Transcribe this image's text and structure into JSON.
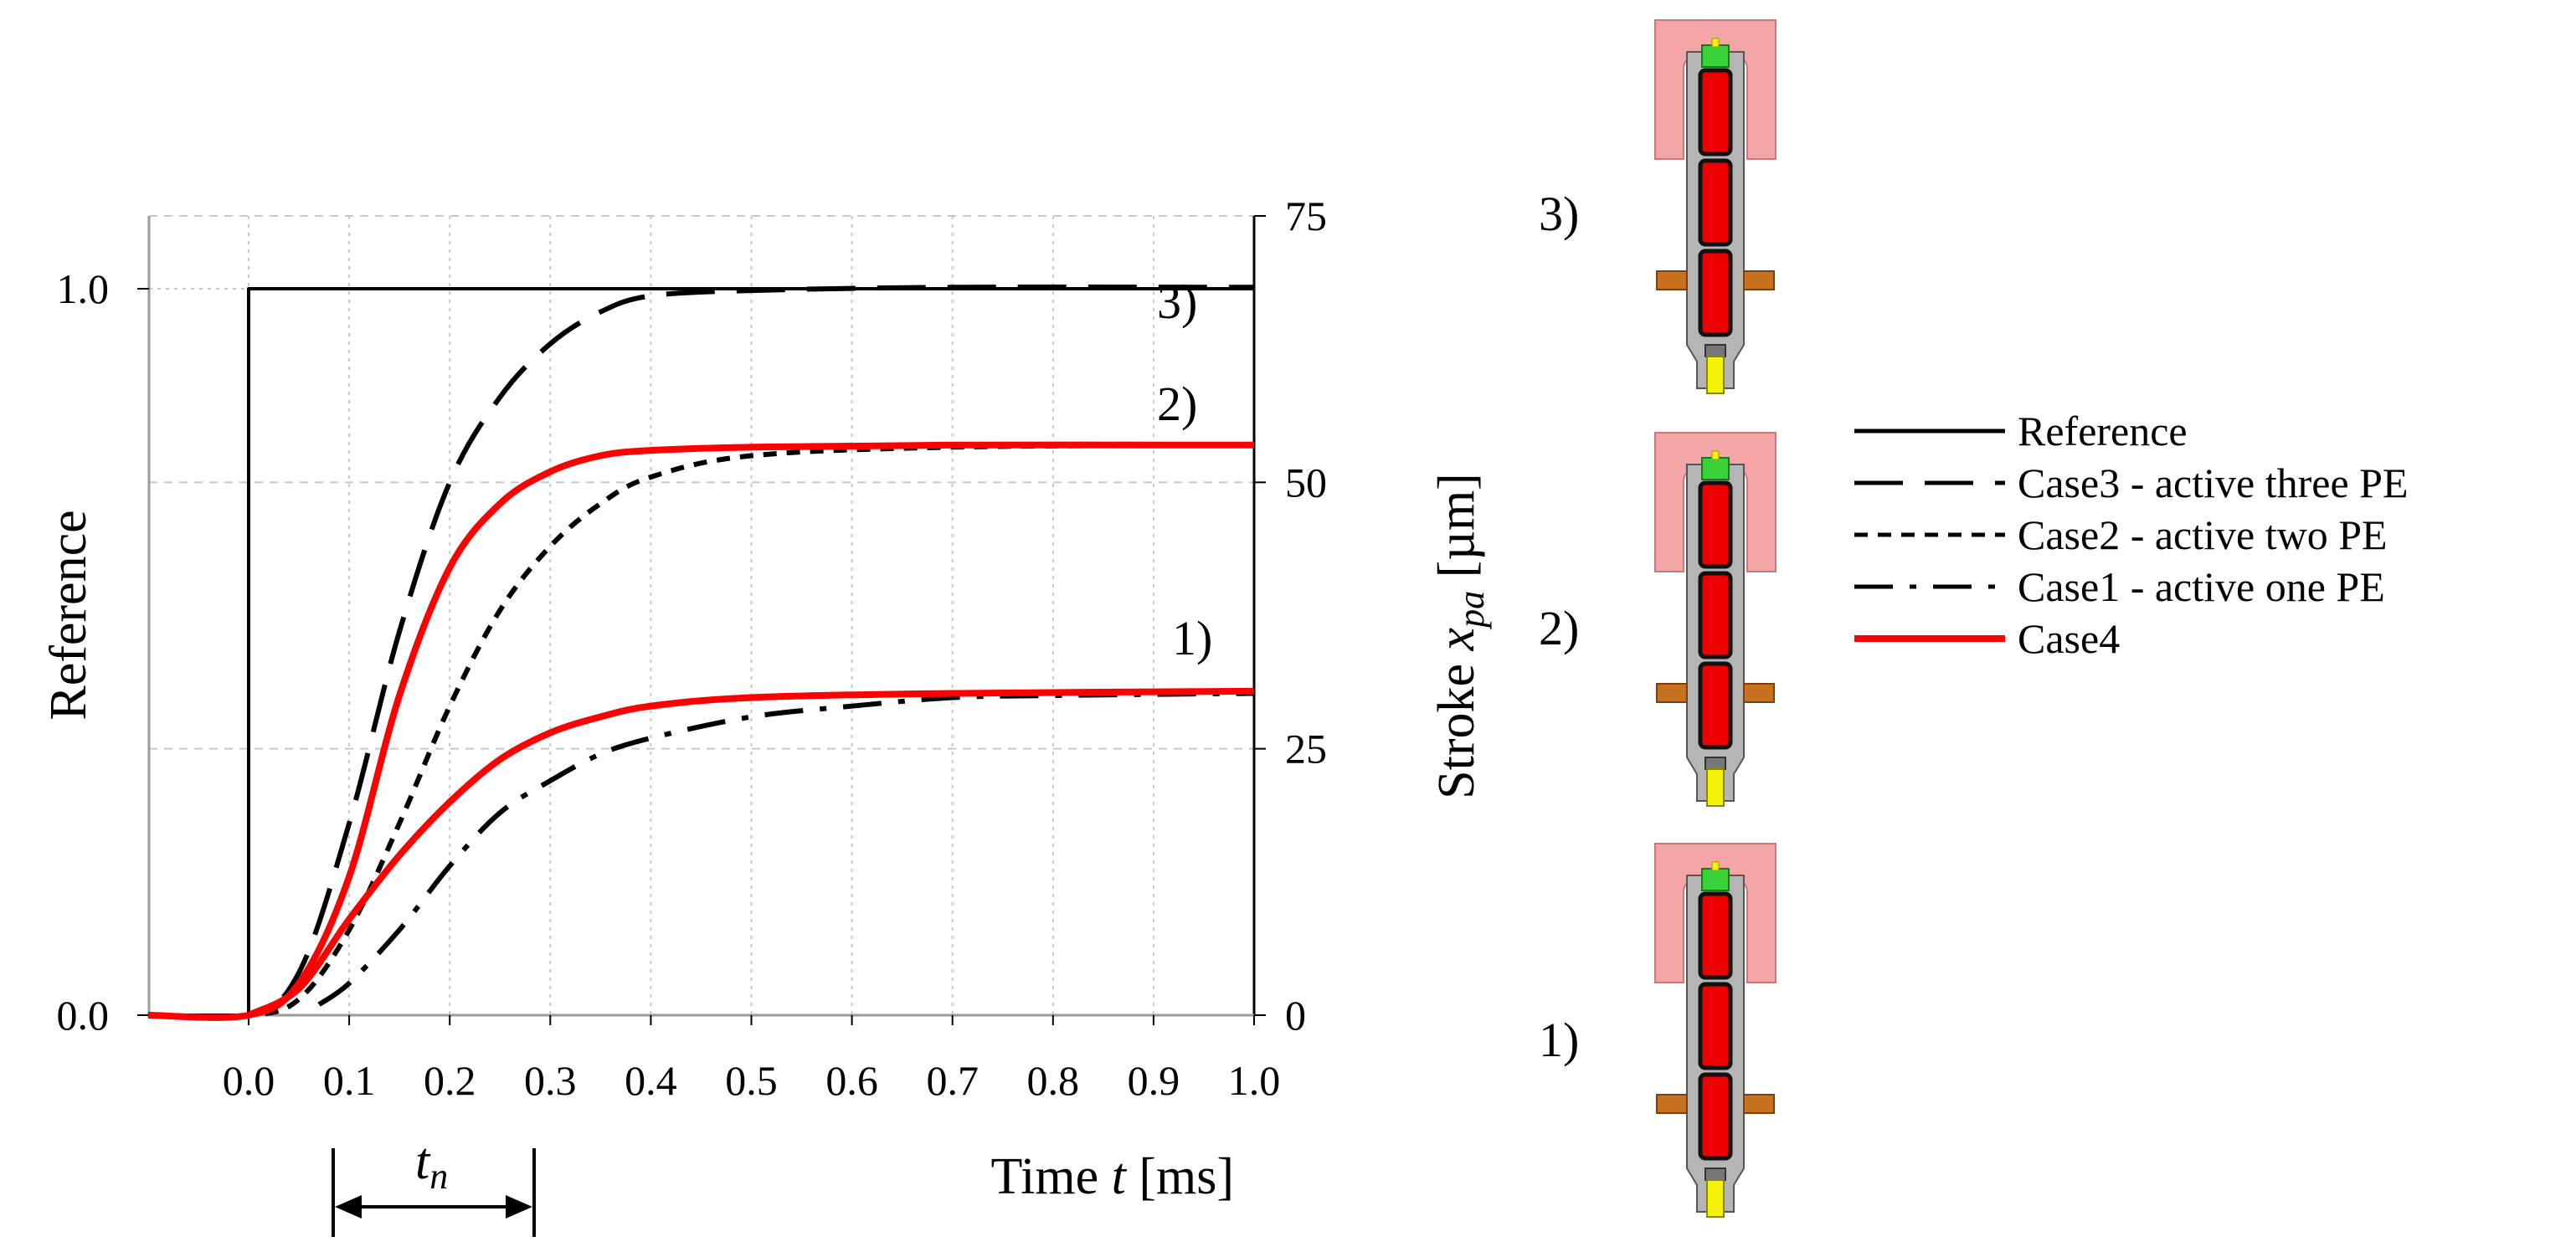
{
  "chart_data": {
    "type": "line",
    "xlabel": "Time t [ms]",
    "xlabel_parts": {
      "prefix": "Time ",
      "var": "t",
      "suffix": " [ms]"
    },
    "ylabel_left": "Reference",
    "ylabel_right": "Stroke x_pa [µm]",
    "ylabel_right_parts": {
      "prefix": "Stroke ",
      "var": "x",
      "sub": "pa",
      "suffix": " [µm]"
    },
    "xlim": [
      -0.1,
      1.0
    ],
    "x_ticks": [
      "0.0",
      "0.1",
      "0.2",
      "0.3",
      "0.4",
      "0.5",
      "0.6",
      "0.7",
      "0.8",
      "0.9",
      "1.0"
    ],
    "y_left_lim": [
      0,
      1.1
    ],
    "y_left_ticks": [
      "0.0",
      "1.0"
    ],
    "y_right_lim": [
      0,
      75
    ],
    "y_right_ticks": [
      "0",
      "25",
      "50",
      "75"
    ],
    "grid": true,
    "annotation": {
      "label": "t",
      "sub": "n",
      "from": 0.08,
      "to": 0.28
    },
    "curve_labels": [
      "3)",
      "2)",
      "1)"
    ],
    "series": [
      {
        "name": "Reference",
        "style": "solid",
        "color": "#000000",
        "axis": "left",
        "points": [
          [
            -0.1,
            0
          ],
          [
            0.0,
            0
          ],
          [
            0.0,
            1.0
          ],
          [
            1.0,
            1.0
          ]
        ]
      },
      {
        "name": "Case3 - active three PE",
        "style": "longdash",
        "color": "#000000",
        "axis": "right",
        "points": [
          [
            -0.1,
            0
          ],
          [
            0.0,
            0
          ],
          [
            0.05,
            4
          ],
          [
            0.1,
            18
          ],
          [
            0.15,
            36
          ],
          [
            0.2,
            50
          ],
          [
            0.25,
            58
          ],
          [
            0.3,
            63
          ],
          [
            0.35,
            66
          ],
          [
            0.4,
            67.5
          ],
          [
            0.5,
            68
          ],
          [
            0.7,
            68.3
          ],
          [
            1.0,
            68.3
          ]
        ]
      },
      {
        "name": "Case2 - active two PE",
        "style": "shortdash",
        "color": "#000000",
        "axis": "right",
        "points": [
          [
            -0.1,
            0
          ],
          [
            0.0,
            0
          ],
          [
            0.05,
            1.5
          ],
          [
            0.1,
            8
          ],
          [
            0.15,
            18
          ],
          [
            0.2,
            29
          ],
          [
            0.25,
            38
          ],
          [
            0.3,
            44
          ],
          [
            0.35,
            48
          ],
          [
            0.4,
            50.5
          ],
          [
            0.5,
            52.5
          ],
          [
            0.7,
            53.3
          ],
          [
            1.0,
            53.5
          ]
        ]
      },
      {
        "name": "Case1 - active one PE",
        "style": "dashdot",
        "color": "#000000",
        "axis": "right",
        "points": [
          [
            0.07,
            1
          ],
          [
            0.1,
            3
          ],
          [
            0.15,
            8
          ],
          [
            0.2,
            14
          ],
          [
            0.25,
            19
          ],
          [
            0.3,
            22
          ],
          [
            0.35,
            24.5
          ],
          [
            0.4,
            26
          ],
          [
            0.5,
            28
          ],
          [
            0.6,
            29
          ],
          [
            0.7,
            29.8
          ],
          [
            0.8,
            30
          ],
          [
            1.0,
            30.2
          ]
        ]
      },
      {
        "name": "Case4",
        "style": "solid",
        "color": "#ff0000",
        "axis": "right",
        "width": 8,
        "points": [
          [
            -0.1,
            0
          ],
          [
            0.0,
            0
          ],
          [
            0.05,
            3
          ],
          [
            0.1,
            13
          ],
          [
            0.15,
            30
          ],
          [
            0.2,
            42
          ],
          [
            0.25,
            48
          ],
          [
            0.3,
            51
          ],
          [
            0.35,
            52.5
          ],
          [
            0.4,
            53
          ],
          [
            0.5,
            53.3
          ],
          [
            0.7,
            53.5
          ],
          [
            1.0,
            53.5
          ]
        ]
      },
      {
        "name": "Case4",
        "style": "solid",
        "color": "#ff0000",
        "axis": "right",
        "width": 8,
        "points": [
          [
            0.0,
            0
          ],
          [
            0.05,
            2.5
          ],
          [
            0.1,
            9
          ],
          [
            0.15,
            15
          ],
          [
            0.2,
            20
          ],
          [
            0.25,
            24
          ],
          [
            0.3,
            26.5
          ],
          [
            0.35,
            28
          ],
          [
            0.4,
            29
          ],
          [
            0.5,
            29.8
          ],
          [
            0.7,
            30.2
          ],
          [
            1.0,
            30.4
          ]
        ]
      }
    ],
    "legend": {
      "placement": "right",
      "entries": [
        {
          "label": "Reference",
          "style": "solid",
          "color": "#000000"
        },
        {
          "label": "Case3 - active three PE",
          "style": "longdash",
          "color": "#000000"
        },
        {
          "label": "Case2 - active two PE",
          "style": "shortdash",
          "color": "#000000"
        },
        {
          "label": "Case1 - active one PE",
          "style": "dashdot",
          "color": "#000000"
        },
        {
          "label": "Case4",
          "style": "solid",
          "color": "#ff0000"
        }
      ]
    }
  },
  "devices": [
    {
      "label": "3)",
      "active": 3
    },
    {
      "label": "2)",
      "active": 2
    },
    {
      "label": "1)",
      "active": 1
    }
  ],
  "colors": {
    "cap": "#f4a6a6",
    "housing": "#b5b5b5",
    "tip": "#39d239",
    "element": "#ee0000",
    "flange": "#c8711f",
    "plunger": "#f5f20a"
  }
}
